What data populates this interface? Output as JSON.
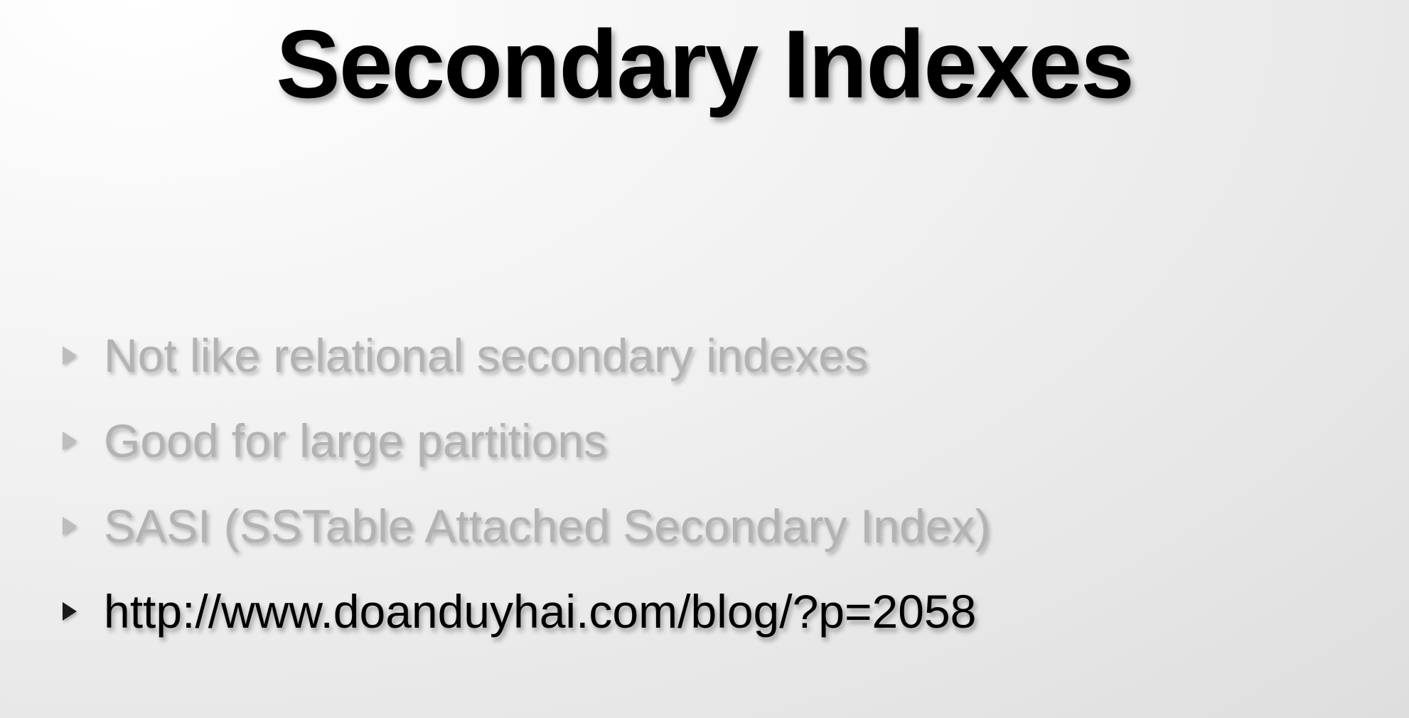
{
  "slide": {
    "title": "Secondary Indexes",
    "bullets": [
      {
        "text": "Not like relational secondary indexes",
        "state": "dimmed"
      },
      {
        "text": "Good for large partitions",
        "state": "dimmed"
      },
      {
        "text": "SASI (SSTable Attached Secondary Index)",
        "state": "dimmed"
      },
      {
        "text": "http://www.doanduyhai.com/blog/?p=2058",
        "state": "active"
      }
    ]
  },
  "colors": {
    "title": "#000000",
    "bullet_dimmed": "#b3b3b3",
    "bullet_active": "#000000",
    "background": "#f1f1f1"
  },
  "icons": {
    "bullet": "triangle-right-icon"
  }
}
